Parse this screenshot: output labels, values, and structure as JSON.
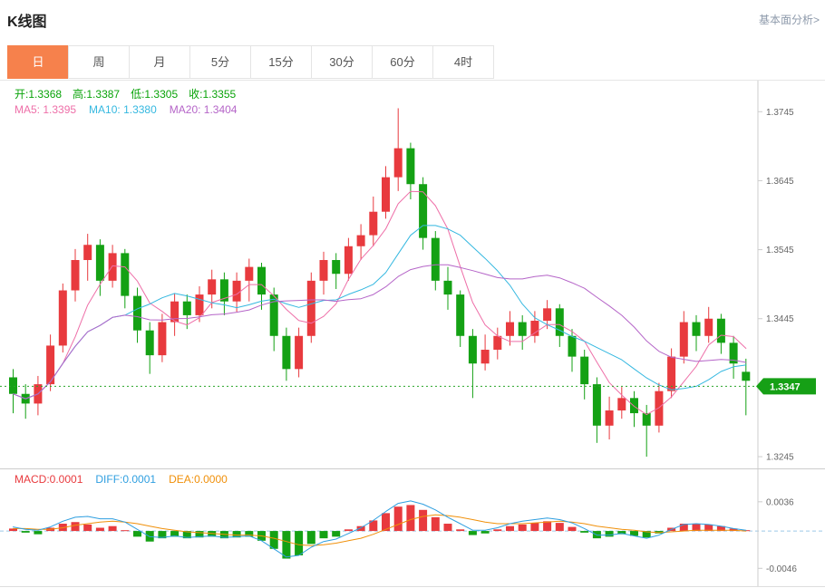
{
  "header": {
    "title": "K线图",
    "link": "基本面分析>"
  },
  "tabs": {
    "items": [
      "日",
      "周",
      "月",
      "5分",
      "15分",
      "30分",
      "60分",
      "4时"
    ],
    "active_index": 0
  },
  "ohlc": {
    "items": [
      "开:1.3368",
      "高:1.3387",
      "低:1.3305",
      "收:1.3355"
    ]
  },
  "ma": {
    "items": [
      "MA5: 1.3395",
      "MA10: 1.3380",
      "MA20: 1.3404"
    ]
  },
  "macd_header": {
    "items": [
      "MACD:0.0001",
      "DIFF:0.0001",
      "DEA:0.0000"
    ]
  },
  "colors": {
    "accent_tab": "#f6814c",
    "up": "#e83a3e",
    "down": "#14a114",
    "ohlc_text": "#09a309",
    "ma5": "#ee6fa8",
    "ma10": "#35b8e0",
    "ma20": "#b565c8",
    "price_tag_bg": "#16a016",
    "price_line": "#2aa52a",
    "macd_label": "#e83a3e",
    "diff_label": "#2f9fe0",
    "dea_label": "#f0900a",
    "zero_line": "#9ec9e8",
    "axis_text": "#666666",
    "axis_line": "#cccccc",
    "link_text": "#8e9aab"
  },
  "chart_data": [
    {
      "type": "candlestick",
      "title": "K线图 (日)",
      "up_color": "#e83a3e",
      "down_color": "#14a114",
      "ylim": [
        1.3228,
        1.379
      ],
      "yticks": [
        1.3745,
        1.3645,
        1.3545,
        1.3445,
        1.3345,
        1.3245
      ],
      "last_price": 1.3347,
      "last_candle": {
        "open": 1.3368,
        "high": 1.3387,
        "low": 1.3305,
        "close": 1.3355
      },
      "ma_periods": [
        5,
        10,
        20
      ],
      "ma_last": {
        "ma5": 1.3395,
        "ma10": 1.338,
        "ma20": 1.3404
      },
      "candles": [
        [
          1.336,
          1.3372,
          1.3308,
          1.3336
        ],
        [
          1.3336,
          1.335,
          1.33,
          1.3322
        ],
        [
          1.3322,
          1.3362,
          1.3305,
          1.335
        ],
        [
          1.335,
          1.3422,
          1.334,
          1.3406
        ],
        [
          1.3406,
          1.3496,
          1.3396,
          1.3486
        ],
        [
          1.3486,
          1.3546,
          1.347,
          1.353
        ],
        [
          1.353,
          1.3568,
          1.35,
          1.3552
        ],
        [
          1.3552,
          1.356,
          1.3478,
          1.35
        ],
        [
          1.35,
          1.3552,
          1.349,
          1.354
        ],
        [
          1.354,
          1.3546,
          1.346,
          1.3478
        ],
        [
          1.3478,
          1.349,
          1.341,
          1.3428
        ],
        [
          1.3428,
          1.344,
          1.3365,
          1.3392
        ],
        [
          1.3392,
          1.3452,
          1.3382,
          1.344
        ],
        [
          1.344,
          1.3482,
          1.342,
          1.347
        ],
        [
          1.347,
          1.348,
          1.343,
          1.345
        ],
        [
          1.345,
          1.3492,
          1.344,
          1.348
        ],
        [
          1.348,
          1.3516,
          1.346,
          1.3502
        ],
        [
          1.3502,
          1.3512,
          1.345,
          1.347
        ],
        [
          1.347,
          1.3512,
          1.3455,
          1.35
        ],
        [
          1.35,
          1.3532,
          1.347,
          1.352
        ],
        [
          1.352,
          1.3526,
          1.3458,
          1.348
        ],
        [
          1.348,
          1.349,
          1.3398,
          1.342
        ],
        [
          1.342,
          1.3432,
          1.3355,
          1.3372
        ],
        [
          1.3372,
          1.3432,
          1.336,
          1.342
        ],
        [
          1.342,
          1.3512,
          1.341,
          1.35
        ],
        [
          1.35,
          1.3542,
          1.348,
          1.353
        ],
        [
          1.353,
          1.354,
          1.3488,
          1.351
        ],
        [
          1.351,
          1.3562,
          1.35,
          1.355
        ],
        [
          1.355,
          1.3582,
          1.353,
          1.3566
        ],
        [
          1.3566,
          1.3622,
          1.355,
          1.36
        ],
        [
          1.36,
          1.3666,
          1.359,
          1.365
        ],
        [
          1.365,
          1.375,
          1.363,
          1.3692
        ],
        [
          1.3692,
          1.37,
          1.3618,
          1.364
        ],
        [
          1.364,
          1.365,
          1.3545,
          1.3562
        ],
        [
          1.3562,
          1.3572,
          1.3486,
          1.35
        ],
        [
          1.35,
          1.352,
          1.3458,
          1.348
        ],
        [
          1.348,
          1.3486,
          1.3404,
          1.342
        ],
        [
          1.342,
          1.343,
          1.333,
          1.338
        ],
        [
          1.338,
          1.3422,
          1.337,
          1.34
        ],
        [
          1.34,
          1.3432,
          1.3386,
          1.342
        ],
        [
          1.342,
          1.3456,
          1.3406,
          1.344
        ],
        [
          1.344,
          1.345,
          1.34,
          1.342
        ],
        [
          1.342,
          1.3456,
          1.341,
          1.3442
        ],
        [
          1.3442,
          1.3472,
          1.343,
          1.346
        ],
        [
          1.346,
          1.3466,
          1.3404,
          1.342
        ],
        [
          1.342,
          1.343,
          1.3368,
          1.339
        ],
        [
          1.339,
          1.34,
          1.3328,
          1.335
        ],
        [
          1.335,
          1.336,
          1.3265,
          1.329
        ],
        [
          1.329,
          1.3332,
          1.327,
          1.3312
        ],
        [
          1.3312,
          1.3346,
          1.33,
          1.333
        ],
        [
          1.333,
          1.334,
          1.3288,
          1.3308
        ],
        [
          1.3308,
          1.332,
          1.3245,
          1.329
        ],
        [
          1.329,
          1.3352,
          1.328,
          1.334
        ],
        [
          1.334,
          1.3402,
          1.333,
          1.339
        ],
        [
          1.339,
          1.3456,
          1.338,
          1.344
        ],
        [
          1.344,
          1.345,
          1.3398,
          1.342
        ],
        [
          1.342,
          1.3462,
          1.341,
          1.3445
        ],
        [
          1.3445,
          1.3452,
          1.3394,
          1.341
        ],
        [
          1.341,
          1.342,
          1.3358,
          1.338
        ],
        [
          1.3368,
          1.3387,
          1.3305,
          1.3355
        ]
      ]
    },
    {
      "type": "macd",
      "ylim": [
        -0.0068,
        0.0076
      ],
      "yticks": [
        0.0036,
        -0.0046
      ],
      "last": {
        "macd": 0.0001,
        "diff": 0.0001,
        "dea": 0.0
      },
      "histogram": [
        0.0003,
        -0.0002,
        -0.0004,
        0.0004,
        0.0009,
        0.0011,
        0.0008,
        0.0004,
        0.0006,
        0.0001,
        -0.0007,
        -0.0013,
        -0.0009,
        -0.0007,
        -0.0009,
        -0.0008,
        -0.0007,
        -0.0009,
        -0.0008,
        -0.0007,
        -0.0012,
        -0.0022,
        -0.0034,
        -0.003,
        -0.0016,
        -0.0009,
        -0.0007,
        0.0002,
        0.0006,
        0.0013,
        0.0022,
        0.003,
        0.0032,
        0.0026,
        0.0017,
        0.0009,
        0.0002,
        -0.0005,
        -0.0003,
        0.0002,
        0.0006,
        0.0008,
        0.001,
        0.0012,
        0.001,
        0.0005,
        -0.0002,
        -0.0009,
        -0.0007,
        -0.0004,
        -0.0006,
        -0.0008,
        -0.0003,
        0.0004,
        0.0009,
        0.0009,
        0.0008,
        0.0006,
        0.0003,
        0.0001
      ],
      "diff": [
        0.0005,
        0.0002,
        0.0001,
        0.0005,
        0.0012,
        0.0017,
        0.0018,
        0.0015,
        0.0015,
        0.0011,
        0.0002,
        -0.0007,
        -0.0008,
        -0.0006,
        -0.0008,
        -0.0007,
        -0.0006,
        -0.0008,
        -0.0007,
        -0.0006,
        -0.0012,
        -0.0022,
        -0.0032,
        -0.003,
        -0.002,
        -0.0013,
        -0.001,
        -0.0003,
        0.0004,
        0.0013,
        0.0024,
        0.0034,
        0.0037,
        0.0033,
        0.0026,
        0.0017,
        0.0009,
        0.0001,
        0.0001,
        0.0004,
        0.0009,
        0.0012,
        0.0014,
        0.0016,
        0.0014,
        0.001,
        0.0003,
        -0.0005,
        -0.0005,
        -0.0003,
        -0.0006,
        -0.0009,
        -0.0005,
        0.0002,
        0.0008,
        0.0009,
        0.0008,
        0.0006,
        0.0003,
        0.0001
      ],
      "dea": [
        0.0003,
        0.0003,
        0.0002,
        0.0002,
        0.0004,
        0.0007,
        0.0009,
        0.0011,
        0.0012,
        0.0011,
        0.0009,
        0.0006,
        0.0003,
        0.0001,
        -0.0001,
        -0.0002,
        -0.0003,
        -0.0004,
        -0.0005,
        -0.0005,
        -0.0006,
        -0.0009,
        -0.0013,
        -0.0017,
        -0.0018,
        -0.0017,
        -0.0015,
        -0.0012,
        -0.0009,
        -0.0004,
        0.0002,
        0.0008,
        0.0014,
        0.0018,
        0.002,
        0.0019,
        0.0017,
        0.0014,
        0.0011,
        0.0009,
        0.0009,
        0.0009,
        0.001,
        0.0011,
        0.0012,
        0.0011,
        0.0009,
        0.0006,
        0.0004,
        0.0002,
        0.0001,
        -0.0001,
        -0.0002,
        -0.0001,
        0.0,
        0.0001,
        0.0001,
        0.0001,
        0.0001,
        0.0
      ]
    }
  ]
}
